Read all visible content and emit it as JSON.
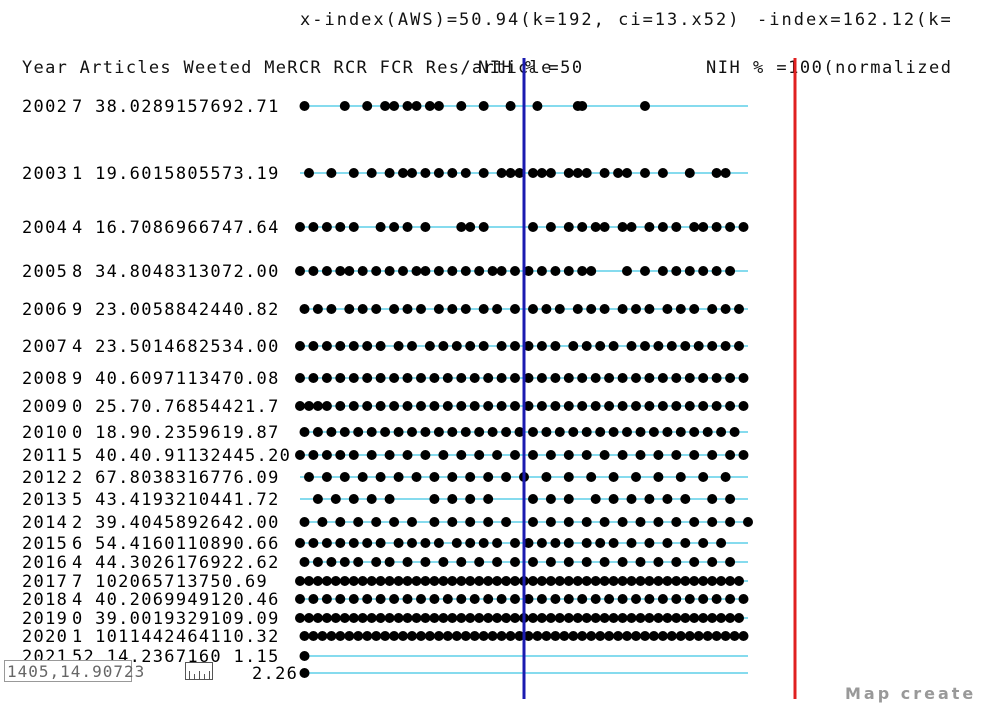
{
  "chart_data": {
    "type": "scatter",
    "header_text": "x-index(AWS)=50.94(k=192, ci=13.x52)",
    "header_text_2": "-index=162.12(k=",
    "column_headers": "Year Articles Weeted MeRCR RCR FCR Res/article",
    "ref_line_50": {
      "label": "NIH % =50",
      "color": "#1b1bb0",
      "value": 50
    },
    "ref_line_100": {
      "label": "NIH % =100(normalized",
      "color": "#e02020",
      "value": 100
    },
    "row_line_color": "#5fcfe8",
    "dot_color": "#000000",
    "rows": [
      {
        "year": "2002",
        "stats": "7  38.0289157692.71",
        "dots": [
          1,
          10,
          15,
          19,
          21,
          24,
          26,
          29,
          31,
          36,
          41,
          47,
          53,
          62,
          63,
          77
        ]
      },
      {
        "year": "2003",
        "stats": "1  19.6015805573.19",
        "dots": [
          2,
          7,
          12,
          16,
          20,
          23,
          25,
          28,
          31,
          34,
          37,
          41,
          45,
          47,
          49,
          52,
          54,
          56,
          60,
          62,
          64,
          68,
          71,
          73,
          77,
          81,
          87,
          93,
          95
        ]
      },
      {
        "year": "2004",
        "stats": "4  16.7086966747.64",
        "dots": [
          0,
          3,
          6,
          9,
          12,
          18,
          21,
          24,
          28,
          36,
          38,
          41,
          52,
          56,
          60,
          63,
          66,
          68,
          72,
          74,
          78,
          81,
          84,
          88,
          90,
          93,
          96,
          99
        ]
      },
      {
        "year": "2005",
        "stats": "8  34.8048313072.00",
        "dots": [
          0,
          3,
          6,
          9,
          11,
          14,
          17,
          20,
          23,
          26,
          28,
          31,
          34,
          37,
          40,
          43,
          45,
          48,
          51,
          54,
          57,
          60,
          63,
          65,
          73,
          77,
          81,
          84,
          87,
          90,
          93,
          96
        ]
      },
      {
        "year": "2006",
        "stats": "9  23.0058842440.82",
        "dots": [
          1,
          4,
          7,
          11,
          14,
          17,
          21,
          24,
          27,
          31,
          34,
          37,
          41,
          44,
          48,
          52,
          55,
          58,
          62,
          65,
          68,
          72,
          75,
          78,
          82,
          85,
          88,
          92,
          95,
          98
        ]
      },
      {
        "year": "2007",
        "stats": "4  23.5014682534.00",
        "dots": [
          0,
          3,
          6,
          9,
          12,
          15,
          18,
          22,
          25,
          29,
          32,
          35,
          38,
          41,
          45,
          48,
          51,
          54,
          57,
          61,
          64,
          67,
          70,
          74,
          77,
          80,
          83,
          86,
          89,
          92,
          95,
          98
        ]
      },
      {
        "year": "2008",
        "stats": "9  40.6097113470.08",
        "dots": [
          0,
          3,
          6,
          9,
          12,
          15,
          18,
          21,
          24,
          27,
          30,
          33,
          36,
          39,
          42,
          45,
          48,
          51,
          54,
          57,
          60,
          63,
          66,
          69,
          72,
          75,
          78,
          81,
          84,
          87,
          90,
          93,
          96,
          99
        ]
      },
      {
        "year": "2009",
        "stats": "0  25.70.76854421.7",
        "dots": [
          0,
          2,
          4,
          6,
          9,
          12,
          15,
          18,
          21,
          24,
          27,
          30,
          33,
          36,
          39,
          42,
          45,
          48,
          51,
          54,
          57,
          60,
          63,
          66,
          69,
          72,
          75,
          78,
          81,
          84,
          87,
          90,
          93,
          96,
          99
        ]
      },
      {
        "year": "2010",
        "stats": "0  18.90.2359619.87",
        "dots": [
          1,
          4,
          7,
          10,
          13,
          16,
          19,
          22,
          25,
          28,
          31,
          34,
          37,
          40,
          43,
          46,
          49,
          52,
          55,
          58,
          61,
          64,
          67,
          70,
          73,
          76,
          79,
          82,
          85,
          88,
          91,
          94,
          97
        ]
      },
      {
        "year": "2011",
        "stats": "5  40.40.91132445.20",
        "dots": [
          0,
          3,
          6,
          9,
          12,
          16,
          20,
          24,
          28,
          32,
          36,
          40,
          44,
          48,
          52,
          56,
          60,
          64,
          68,
          72,
          76,
          80,
          84,
          88,
          92,
          96,
          99
        ]
      },
      {
        "year": "2012",
        "stats": "2  67.8038316776.09",
        "dots": [
          2,
          6,
          10,
          14,
          18,
          22,
          26,
          30,
          34,
          38,
          42,
          46,
          50,
          55,
          60,
          65,
          70,
          75,
          80,
          85,
          90,
          95
        ]
      },
      {
        "year": "2013",
        "stats": "5  43.4193210441.72",
        "dots": [
          4,
          8,
          12,
          16,
          20,
          30,
          34,
          38,
          42,
          52,
          56,
          60,
          66,
          70,
          74,
          78,
          82,
          86,
          92,
          96
        ]
      },
      {
        "year": "2014",
        "stats": "2  39.4045892642.00",
        "dots": [
          1,
          5,
          9,
          13,
          17,
          21,
          25,
          30,
          34,
          38,
          42,
          46,
          52,
          56,
          60,
          64,
          68,
          72,
          76,
          80,
          84,
          88,
          92,
          96,
          100
        ]
      },
      {
        "year": "2015",
        "stats": "6  54.4160110890.66",
        "dots": [
          0,
          3,
          6,
          9,
          12,
          15,
          18,
          22,
          25,
          28,
          31,
          35,
          38,
          41,
          44,
          48,
          51,
          54,
          57,
          60,
          64,
          67,
          70,
          74,
          78,
          82,
          86,
          90,
          94
        ]
      },
      {
        "year": "2016",
        "stats": "4  44.3026176922.62",
        "dots": [
          1,
          4,
          7,
          10,
          13,
          17,
          20,
          24,
          28,
          32,
          36,
          40,
          44,
          48,
          52,
          56,
          60,
          64,
          68,
          72,
          76,
          80,
          84,
          88,
          92,
          96
        ]
      },
      {
        "year": "2017",
        "stats": "7  102065713750.69",
        "dots": [
          0,
          2,
          4,
          6,
          8,
          10,
          12,
          14,
          16,
          18,
          20,
          22,
          24,
          26,
          28,
          30,
          32,
          34,
          36,
          38,
          40,
          42,
          44,
          46,
          48,
          50,
          52,
          54,
          56,
          58,
          60,
          62,
          64,
          66,
          68,
          70,
          72,
          74,
          76,
          78,
          80,
          82,
          84,
          86,
          88,
          90,
          92,
          94,
          96,
          98
        ]
      },
      {
        "year": "2018",
        "stats": "4  40.2069949120.46",
        "dots": [
          0,
          3,
          6,
          9,
          12,
          15,
          18,
          21,
          24,
          27,
          30,
          33,
          36,
          39,
          42,
          45,
          48,
          51,
          54,
          57,
          60,
          63,
          66,
          69,
          72,
          75,
          78,
          81,
          84,
          87,
          90,
          93,
          96,
          99
        ]
      },
      {
        "year": "2019",
        "stats": "0  39.0019329109.09",
        "dots": [
          0,
          2,
          4,
          6,
          8,
          10,
          12,
          14,
          16,
          18,
          20,
          22,
          24,
          26,
          28,
          30,
          32,
          34,
          36,
          38,
          40,
          42,
          44,
          46,
          48,
          50,
          52,
          54,
          56,
          58,
          60,
          62,
          64,
          66,
          68,
          70,
          72,
          74,
          76,
          78,
          80,
          82,
          84,
          86,
          88,
          90,
          92,
          94,
          96,
          98
        ]
      },
      {
        "year": "2020",
        "stats": "1  1011442464110.32",
        "dots": [
          1,
          3,
          5,
          7,
          9,
          11,
          13,
          15,
          17,
          19,
          21,
          23,
          25,
          27,
          29,
          31,
          33,
          35,
          37,
          39,
          41,
          43,
          45,
          47,
          49,
          51,
          53,
          55,
          57,
          59,
          61,
          63,
          65,
          67,
          69,
          71,
          73,
          75,
          77,
          79,
          81,
          83,
          85,
          87,
          89,
          91,
          93,
          95,
          97,
          99
        ]
      },
      {
        "year": "2021",
        "stats": "52  14.2367160  1.15",
        "dots": [
          1
        ]
      },
      {
        "year": "",
        "stats": "2.26",
        "dots": [
          1
        ]
      }
    ],
    "xlim": [
      0,
      100
    ]
  },
  "overlay": {
    "coordinate_readout": "1405,14.90723",
    "credit_text": "Map create"
  }
}
